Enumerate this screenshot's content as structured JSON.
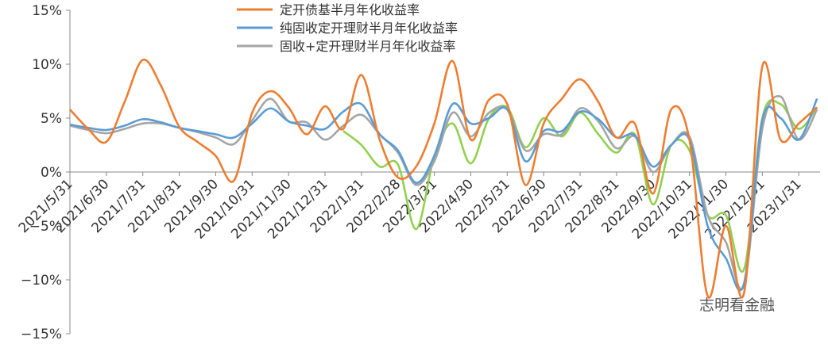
{
  "chart_data": {
    "type": "line",
    "categories": [
      "2021/5/31",
      null,
      "2021/6/30",
      null,
      "2021/7/31",
      null,
      "2021/8/31",
      null,
      "2021/9/30",
      null,
      "2021/10/31",
      null,
      "2021/11/30",
      null,
      "2021/12/31",
      null,
      "2022/1/31",
      null,
      "2022/2/28",
      null,
      "2022/3/31",
      null,
      "2022/4/30",
      null,
      "2022/5/31",
      null,
      "2022/6/30",
      null,
      "2022/7/31",
      null,
      "2022/8/31",
      null,
      "2022/9/30",
      null,
      "2022/10/31",
      null,
      "2022/11/30",
      null,
      "2022/12/31",
      null,
      "2023/1/31",
      null
    ],
    "series": [
      {
        "name": "定开债基半月年化收益率",
        "color": "#ed7d31",
        "values": [
          5.8,
          4.0,
          2.8,
          6.5,
          10.4,
          8.0,
          4.2,
          2.8,
          1.5,
          -0.8,
          5.5,
          7.5,
          6.0,
          3.5,
          6.1,
          4.0,
          9.0,
          3.0,
          -0.5,
          0.5,
          4.5,
          10.3,
          3.0,
          6.7,
          6.3,
          -1.2,
          4.5,
          6.8,
          8.6,
          6.5,
          3.2,
          4.5,
          -2.0,
          5.8,
          3.0,
          -11.5,
          -5.0,
          -11.2,
          9.8,
          3.0,
          4.5,
          6.0
        ]
      },
      {
        "name": "纯固收定开理财半月年化收益率",
        "color": "#5b9bd5",
        "values": [
          4.4,
          4.1,
          3.9,
          4.3,
          4.9,
          4.6,
          4.1,
          3.8,
          3.5,
          3.2,
          4.5,
          5.9,
          4.7,
          4.3,
          4.0,
          5.6,
          6.3,
          3.5,
          2.0,
          -1.0,
          1.5,
          6.3,
          4.5,
          5.0,
          5.8,
          1.0,
          3.8,
          3.8,
          5.6,
          4.9,
          3.2,
          3.4,
          0.5,
          2.5,
          3.0,
          -5.0,
          -8.0,
          -10.3,
          4.8,
          5.0,
          3.0,
          6.8
        ]
      },
      {
        "name": "固收+定开理财半月年化收益率",
        "color": "#a5a5a5",
        "values": [
          4.3,
          3.9,
          3.6,
          4.0,
          4.5,
          4.5,
          4.1,
          3.7,
          3.2,
          2.6,
          4.8,
          6.8,
          4.7,
          4.6,
          3.0,
          4.3,
          5.3,
          3.5,
          1.8,
          -1.2,
          1.0,
          5.5,
          3.3,
          5.5,
          5.8,
          2.0,
          3.5,
          3.5,
          5.9,
          4.7,
          2.2,
          3.3,
          0.0,
          2.5,
          3.3,
          -4.0,
          -6.5,
          -10.5,
          4.0,
          7.0,
          3.0,
          5.8
        ]
      },
      {
        "color": "#92d050",
        "values": [
          null,
          null,
          null,
          null,
          null,
          null,
          null,
          null,
          null,
          null,
          null,
          null,
          null,
          null,
          null,
          3.8,
          2.5,
          0.5,
          0.7,
          -5.3,
          1.5,
          4.5,
          0.8,
          5.0,
          6.0,
          2.3,
          5.0,
          3.3,
          5.5,
          3.5,
          1.8,
          3.5,
          -3.0,
          2.5,
          2.0,
          -4.0,
          -4.0,
          -9.0,
          5.0,
          6.3,
          4.0,
          6.0
        ]
      }
    ],
    "ylim": [
      -15,
      15
    ],
    "yticks": [
      {
        "value": -15,
        "label": "−15%"
      },
      {
        "value": -10,
        "label": "−10%"
      },
      {
        "value": -5,
        "label": "−5%"
      },
      {
        "value": 0,
        "label": "0%"
      },
      {
        "value": 5,
        "label": "5%"
      },
      {
        "value": 10,
        "label": "10%"
      },
      {
        "value": 15,
        "label": "15%"
      }
    ],
    "annotation": "志明看金融"
  }
}
